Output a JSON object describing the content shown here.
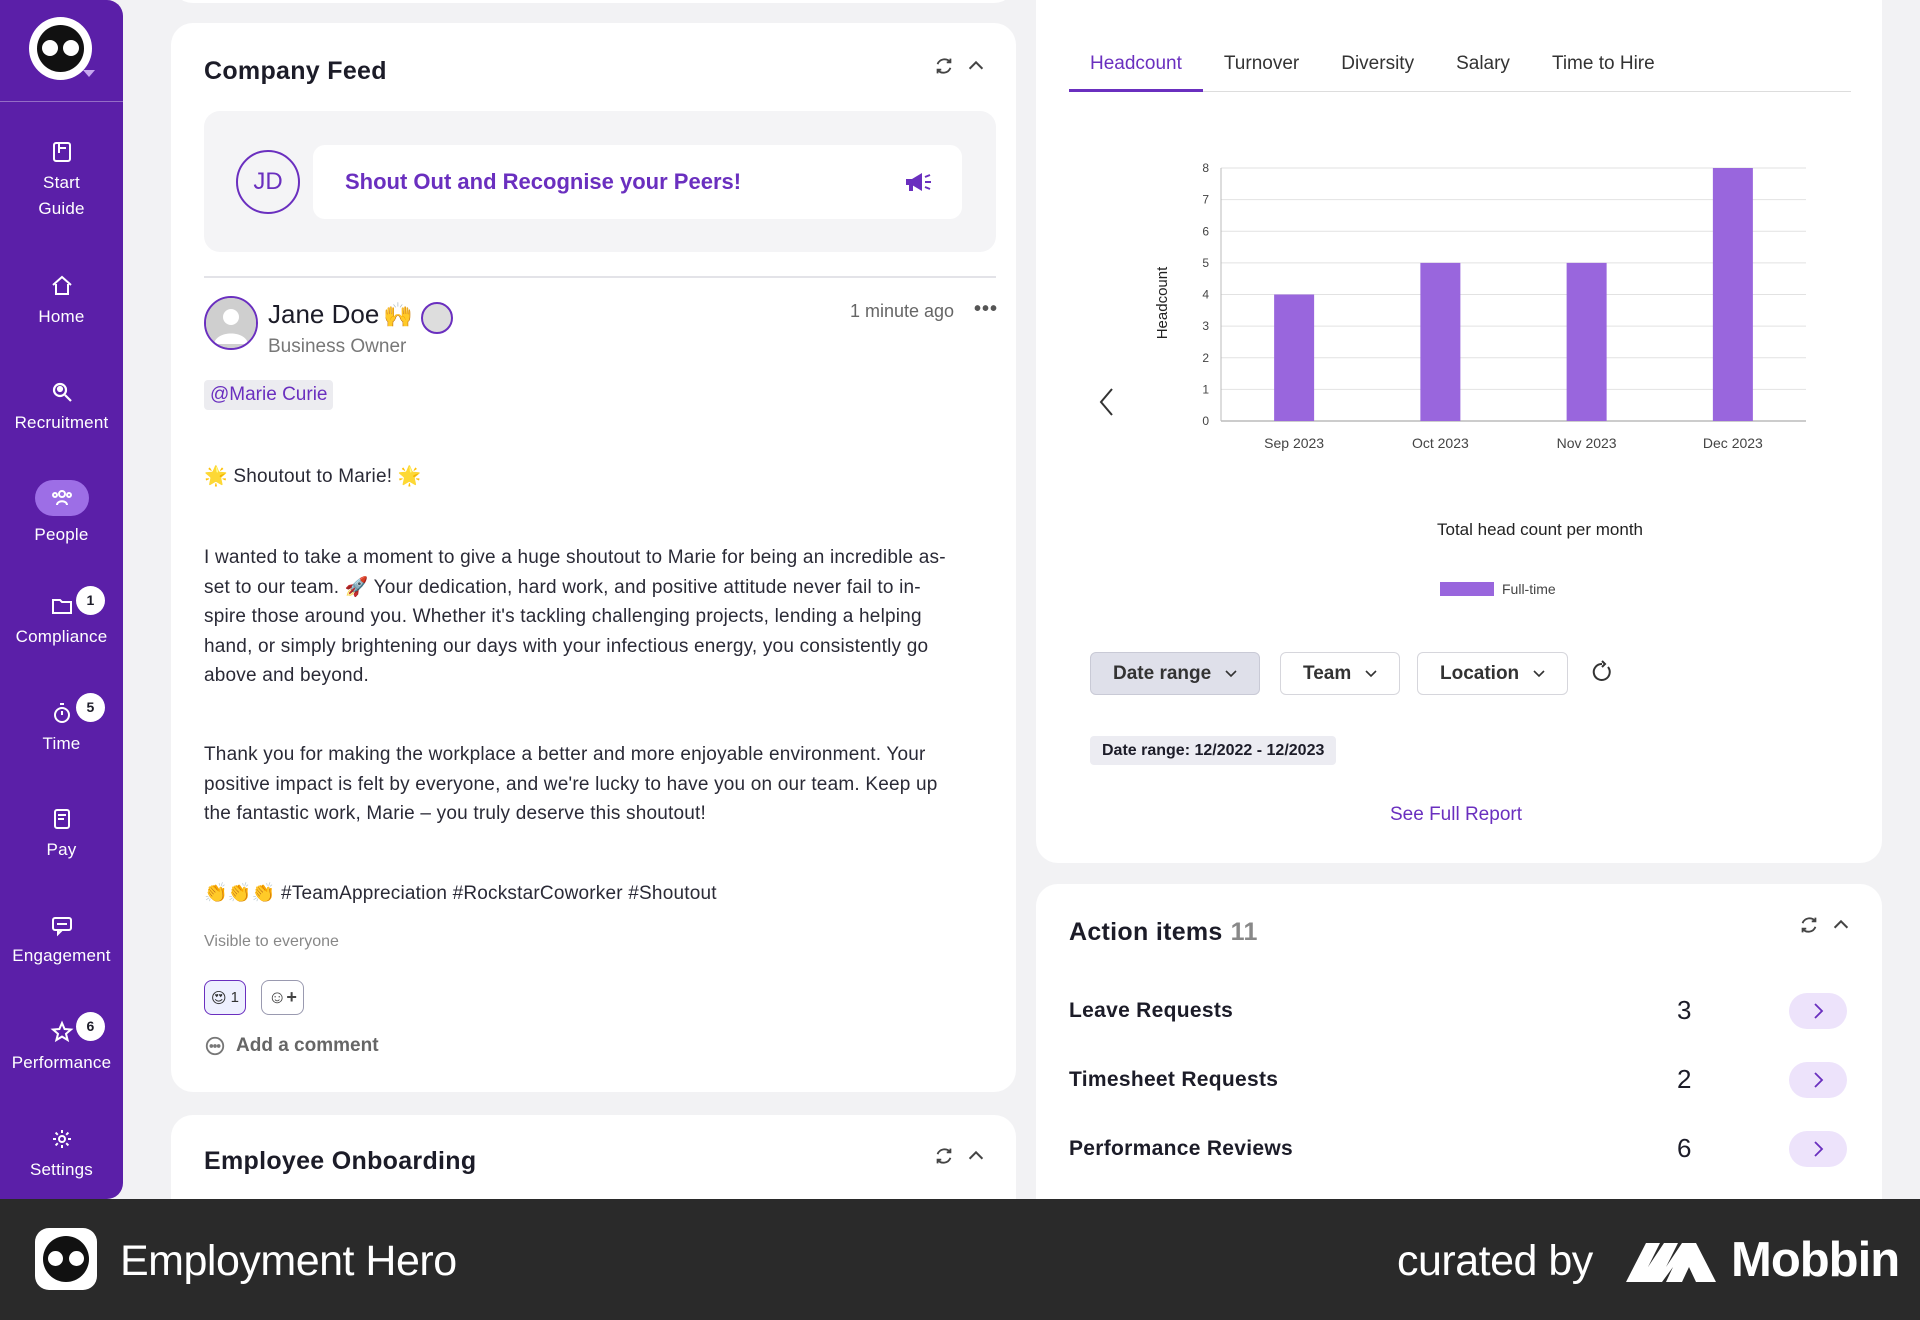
{
  "sidebar": {
    "items": [
      {
        "label_1": "Start",
        "label_2": "Guide",
        "icon": "book-icon"
      },
      {
        "label": "Home",
        "icon": "home-icon"
      },
      {
        "label": "Recruitment",
        "icon": "search-person-icon"
      },
      {
        "label": "People",
        "icon": "people-icon",
        "active": true
      },
      {
        "label": "Compliance",
        "icon": "folder-icon",
        "badge": "1"
      },
      {
        "label": "Time",
        "icon": "stopwatch-icon",
        "badge": "5"
      },
      {
        "label": "Pay",
        "icon": "payslip-icon"
      },
      {
        "label": "Engagement",
        "icon": "chat-icon"
      },
      {
        "label": "Performance",
        "icon": "star-icon",
        "badge": "6"
      },
      {
        "label": "Settings",
        "icon": "gear-icon"
      }
    ]
  },
  "feed": {
    "title": "Company Feed",
    "avatar_initials": "JD",
    "shout_prompt": "Shout Out and Recognise your Peers!",
    "post": {
      "author": "Jane Doe",
      "author_emoji": "🙌",
      "role": "Business Owner",
      "time": "1 minute ago",
      "more": "•••",
      "mention": "@Marie Curie",
      "heading": "🌟 Shoutout to Marie! 🌟",
      "para1_lines": [
        "I wanted to take a moment to give a huge shoutout to Marie for being an incredible as-",
        "set to our team. 🚀 Your dedication, hard work, and positive attitude never fail to in-",
        "spire those around you. Whether it's tackling challenging projects, lending a helping",
        "hand, or simply brightening our days with your infectious energy, you consistently go",
        "above and beyond."
      ],
      "para2_lines": [
        "Thank you for making the workplace a better and more enjoyable environment. Your",
        "positive impact is felt by everyone, and we're lucky to have you on our team. Keep up",
        "the fantastic work, Marie – you truly deserve this shoutout!"
      ],
      "hashtags": "👏👏👏 #TeamAppreciation #RockstarCoworker #Shoutout",
      "visibility": "Visible to everyone",
      "reaction_emoji": "😍",
      "reaction_count": "1",
      "add_reaction": "☺+",
      "add_comment": "Add a comment"
    }
  },
  "onboarding": {
    "title": "Employee Onboarding"
  },
  "report": {
    "tabs": [
      "Headcount",
      "Turnover",
      "Diversity",
      "Salary",
      "Time to Hire"
    ],
    "active_tab": "Headcount",
    "filters": {
      "date_range": "Date range",
      "team": "Team",
      "location": "Location"
    },
    "date_chip": "Date range: 12/2022 - 12/2023",
    "see_full_report": "See Full Report"
  },
  "chart_data": {
    "type": "bar",
    "categories": [
      "Sep 2023",
      "Oct 2023",
      "Nov 2023",
      "Dec 2023"
    ],
    "series": [
      {
        "name": "Full-time",
        "values": [
          4,
          5,
          5,
          8
        ]
      }
    ],
    "title": "",
    "xlabel": "Total head count per month",
    "ylabel": "Headcount",
    "ylim": [
      0,
      8
    ],
    "yticks": [
      0,
      1,
      2,
      3,
      4,
      5,
      6,
      7,
      8
    ],
    "grid": true,
    "legend": "bottom",
    "bar_color": "#9966dd"
  },
  "action_items": {
    "title": "Action items",
    "count": "11",
    "rows": [
      {
        "label": "Leave Requests",
        "count": "3"
      },
      {
        "label": "Timesheet Requests",
        "count": "2"
      },
      {
        "label": "Performance Reviews",
        "count": "6"
      }
    ]
  },
  "footer": {
    "brand": "Employment Hero",
    "curated_by": "curated by",
    "mobbin": "Mobbin"
  },
  "colors": {
    "primary": "#5b1fa8",
    "accent": "#6a2fbf",
    "bar": "#9966dd",
    "footer": "#2a2a2a"
  }
}
